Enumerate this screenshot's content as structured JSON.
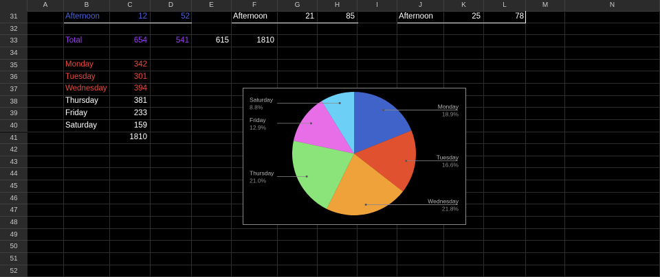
{
  "columns": [
    "A",
    "B",
    "C",
    "D",
    "E",
    "F",
    "G",
    "H",
    "I",
    "J",
    "K",
    "L",
    "M",
    "N"
  ],
  "rows": [
    "31",
    "32",
    "33",
    "34",
    "35",
    "36",
    "37",
    "38",
    "39",
    "40",
    "41",
    "42",
    "43",
    "44",
    "45",
    "46",
    "47",
    "48",
    "49",
    "50",
    "51",
    "52"
  ],
  "row31": {
    "b": "Afternoon",
    "c": "12",
    "d": "52",
    "f": "Afternoon",
    "g": "21",
    "h": "85",
    "j": "Afternoon",
    "k": "25",
    "l": "78"
  },
  "row33": {
    "b": "Total",
    "c": "654",
    "d": "541",
    "e": "615",
    "f": "1810"
  },
  "days": [
    {
      "label": "Monday",
      "value": "342"
    },
    {
      "label": "Tuesday",
      "value": "301"
    },
    {
      "label": "Wednesday",
      "value": "394"
    },
    {
      "label": "Thursday",
      "value": "381"
    },
    {
      "label": "Friday",
      "value": "233"
    },
    {
      "label": "Saturday",
      "value": "159"
    }
  ],
  "row41_total": "1810",
  "colors": {
    "blue_text": "#4a63d6",
    "purple_text": "#9a3df0",
    "red_text": "#e84a3c"
  },
  "chart_data": {
    "type": "pie",
    "categories": [
      "Monday",
      "Tuesday",
      "Wednesday",
      "Thursday",
      "Friday",
      "Saturday"
    ],
    "values": [
      342,
      301,
      394,
      381,
      233,
      159
    ],
    "percent_labels": [
      "18.9%",
      "16.6%",
      "21.8%",
      "21.0%",
      "12.9%",
      "8.8%"
    ],
    "colors": [
      "#3f63c8",
      "#e0522f",
      "#f0a23a",
      "#8be47a",
      "#e86ee8",
      "#6ccff6"
    ],
    "title": "",
    "legend": "none"
  }
}
